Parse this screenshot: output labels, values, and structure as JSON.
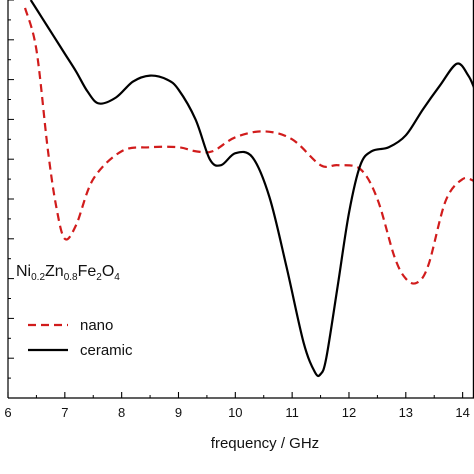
{
  "chart_data": {
    "type": "line",
    "xlabel": "frequency / GHz",
    "ylabel": "",
    "xlim": [
      6,
      14.2
    ],
    "ylim": [
      0,
      20
    ],
    "x_ticks": [
      "6",
      "7",
      "8",
      "9",
      "10",
      "11",
      "12",
      "13",
      "14"
    ],
    "grid": false,
    "legend_position": "left",
    "annotation": {
      "parts": [
        {
          "text": "Ni",
          "sub": false
        },
        {
          "text": "0.2",
          "sub": true
        },
        {
          "text": "Zn",
          "sub": false
        },
        {
          "text": "0.8",
          "sub": true
        },
        {
          "text": "Fe",
          "sub": false
        },
        {
          "text": "2",
          "sub": true
        },
        {
          "text": "O",
          "sub": false
        },
        {
          "text": "4",
          "sub": true
        }
      ]
    },
    "series": [
      {
        "name": "nano",
        "color": "#d11c1c",
        "dash": "dashed",
        "x": [
          6.3,
          6.5,
          6.7,
          6.85,
          7.0,
          7.2,
          7.5,
          8.0,
          8.5,
          9.0,
          9.3,
          9.6,
          10.0,
          10.5,
          11.0,
          11.5,
          11.8,
          12.2,
          12.5,
          12.8,
          13.0,
          13.2,
          13.4,
          13.7,
          14.0,
          14.2
        ],
        "y": [
          19.6,
          17.5,
          12.5,
          9.6,
          8.0,
          8.7,
          11.0,
          12.4,
          12.6,
          12.6,
          12.4,
          12.4,
          13.1,
          13.4,
          13.0,
          11.7,
          11.7,
          11.5,
          10.0,
          7.1,
          6.0,
          5.8,
          6.7,
          9.9,
          11.0,
          10.9
        ]
      },
      {
        "name": "ceramic",
        "color": "#000000",
        "dash": "solid",
        "x": [
          6.4,
          6.6,
          6.8,
          7.0,
          7.2,
          7.4,
          7.6,
          7.9,
          8.2,
          8.5,
          8.8,
          9.0,
          9.3,
          9.55,
          9.75,
          10.0,
          10.3,
          10.6,
          10.9,
          11.2,
          11.4,
          11.5,
          11.6,
          11.8,
          12.0,
          12.2,
          12.4,
          12.7,
          13.0,
          13.3,
          13.6,
          13.9,
          14.1,
          14.2
        ],
        "y": [
          20.0,
          19.1,
          18.2,
          17.3,
          16.4,
          15.4,
          14.8,
          15.1,
          15.9,
          16.2,
          16.0,
          15.5,
          14.0,
          12.0,
          11.7,
          12.3,
          12.1,
          10.1,
          6.6,
          2.8,
          1.3,
          1.2,
          2.0,
          5.6,
          9.3,
          11.7,
          12.4,
          12.6,
          13.2,
          14.5,
          15.7,
          16.8,
          16.2,
          15.6
        ]
      }
    ]
  }
}
